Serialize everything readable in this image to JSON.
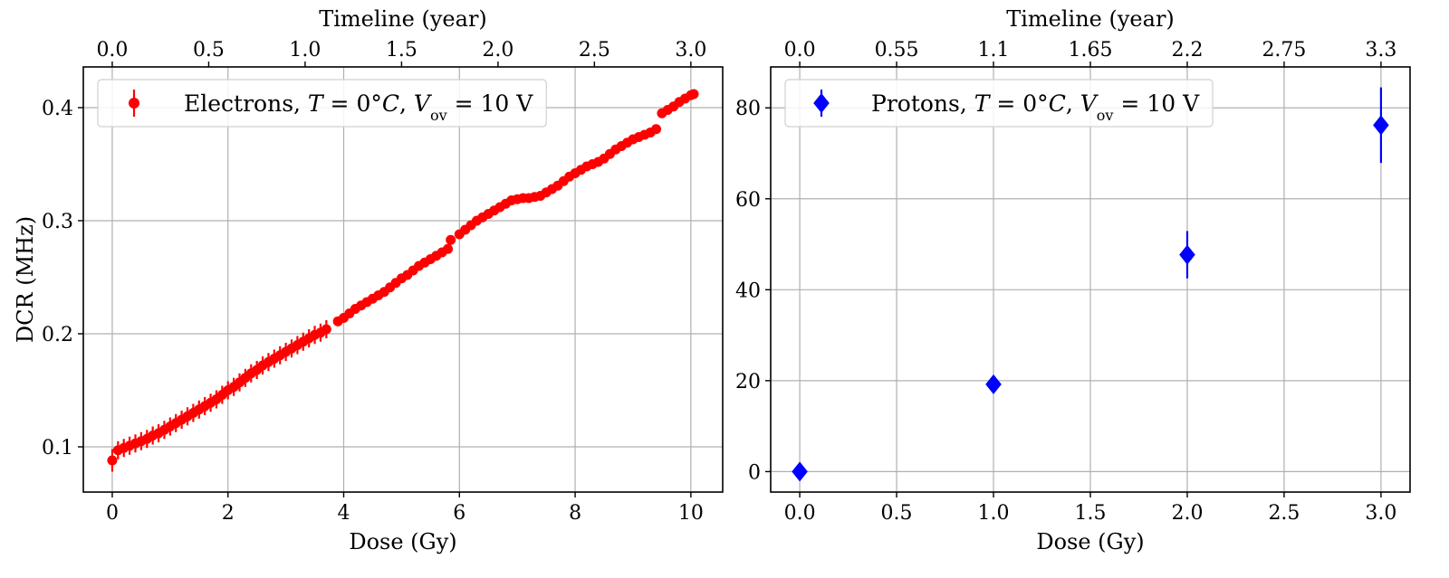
{
  "chart_data": [
    {
      "type": "scatter",
      "panel": "left",
      "marker": "circle",
      "color": "#ff0000",
      "xlabel": "Dose (Gy)",
      "ylabel": "DCR (MHz)",
      "top_xlabel": "Timeline (year)",
      "xlim": [
        -0.5,
        10.55
      ],
      "ylim": [
        0.06,
        0.436
      ],
      "x_ticks": [
        0,
        2,
        4,
        6,
        8,
        10
      ],
      "x_tick_labels": [
        "0",
        "2",
        "4",
        "6",
        "8",
        "10"
      ],
      "y_ticks": [
        0.1,
        0.2,
        0.3,
        0.4
      ],
      "y_tick_labels": [
        "0.1",
        "0.2",
        "0.3",
        "0.4"
      ],
      "top_x_ticks_dose": [
        0,
        1.667,
        3.333,
        5.0,
        6.667,
        8.333,
        10.0
      ],
      "top_x_tick_labels": [
        "0.0",
        "0.5",
        "1.0",
        "1.5",
        "2.0",
        "2.5",
        "3.0"
      ],
      "grid": true,
      "legend_position": "top-left",
      "legend_parts": [
        "Electrons, ",
        "T",
        " = 0°",
        "C",
        ", ",
        "V",
        "ov",
        " = 10 V"
      ],
      "series": [
        {
          "name": "Electrons, T = 0°C, Vov = 10 V",
          "points": [
            [
              0.0,
              0.088,
              0.01
            ],
            [
              0.1,
              0.097,
              0.008
            ],
            [
              0.2,
              0.099,
              0.008
            ],
            [
              0.3,
              0.101,
              0.008
            ],
            [
              0.4,
              0.103,
              0.008
            ],
            [
              0.5,
              0.105,
              0.008
            ],
            [
              0.6,
              0.107,
              0.008
            ],
            [
              0.7,
              0.11,
              0.008
            ],
            [
              0.8,
              0.112,
              0.008
            ],
            [
              0.9,
              0.115,
              0.008
            ],
            [
              1.0,
              0.118,
              0.008
            ],
            [
              1.1,
              0.121,
              0.008
            ],
            [
              1.2,
              0.124,
              0.008
            ],
            [
              1.3,
              0.127,
              0.008
            ],
            [
              1.4,
              0.13,
              0.008
            ],
            [
              1.5,
              0.133,
              0.008
            ],
            [
              1.6,
              0.136,
              0.008
            ],
            [
              1.7,
              0.139,
              0.008
            ],
            [
              1.8,
              0.142,
              0.008
            ],
            [
              1.9,
              0.146,
              0.008
            ],
            [
              2.0,
              0.15,
              0.008
            ],
            [
              2.1,
              0.153,
              0.008
            ],
            [
              2.2,
              0.157,
              0.008
            ],
            [
              2.3,
              0.161,
              0.008
            ],
            [
              2.4,
              0.165,
              0.008
            ],
            [
              2.5,
              0.168,
              0.008
            ],
            [
              2.6,
              0.172,
              0.008
            ],
            [
              2.7,
              0.175,
              0.008
            ],
            [
              2.8,
              0.178,
              0.008
            ],
            [
              2.9,
              0.181,
              0.008
            ],
            [
              3.0,
              0.184,
              0.008
            ],
            [
              3.1,
              0.187,
              0.008
            ],
            [
              3.2,
              0.19,
              0.008
            ],
            [
              3.3,
              0.193,
              0.008
            ],
            [
              3.4,
              0.196,
              0.008
            ],
            [
              3.5,
              0.199,
              0.008
            ],
            [
              3.6,
              0.201,
              0.008
            ],
            [
              3.7,
              0.204,
              0.008
            ],
            [
              3.9,
              0.211,
              0.002
            ],
            [
              4.0,
              0.214,
              0.002
            ],
            [
              4.1,
              0.218,
              0.002
            ],
            [
              4.2,
              0.222,
              0.002
            ],
            [
              4.3,
              0.225,
              0.002
            ],
            [
              4.4,
              0.228,
              0.002
            ],
            [
              4.5,
              0.231,
              0.002
            ],
            [
              4.6,
              0.234,
              0.002
            ],
            [
              4.7,
              0.237,
              0.002
            ],
            [
              4.8,
              0.241,
              0.002
            ],
            [
              4.9,
              0.245,
              0.002
            ],
            [
              5.0,
              0.249,
              0.002
            ],
            [
              5.1,
              0.252,
              0.002
            ],
            [
              5.2,
              0.256,
              0.002
            ],
            [
              5.3,
              0.26,
              0.002
            ],
            [
              5.4,
              0.263,
              0.002
            ],
            [
              5.5,
              0.266,
              0.002
            ],
            [
              5.6,
              0.269,
              0.002
            ],
            [
              5.7,
              0.272,
              0.002
            ],
            [
              5.8,
              0.275,
              0.002
            ],
            [
              5.85,
              0.283,
              0.002
            ],
            [
              6.0,
              0.288,
              0.002
            ],
            [
              6.1,
              0.292,
              0.002
            ],
            [
              6.2,
              0.296,
              0.002
            ],
            [
              6.3,
              0.3,
              0.002
            ],
            [
              6.4,
              0.303,
              0.002
            ],
            [
              6.5,
              0.306,
              0.002
            ],
            [
              6.6,
              0.309,
              0.002
            ],
            [
              6.7,
              0.312,
              0.002
            ],
            [
              6.8,
              0.315,
              0.002
            ],
            [
              6.9,
              0.318,
              0.002
            ],
            [
              7.0,
              0.319,
              0.002
            ],
            [
              7.1,
              0.32,
              0.002
            ],
            [
              7.2,
              0.32,
              0.002
            ],
            [
              7.3,
              0.321,
              0.002
            ],
            [
              7.4,
              0.322,
              0.002
            ],
            [
              7.5,
              0.325,
              0.002
            ],
            [
              7.6,
              0.328,
              0.002
            ],
            [
              7.7,
              0.331,
              0.002
            ],
            [
              7.8,
              0.335,
              0.002
            ],
            [
              7.9,
              0.339,
              0.002
            ],
            [
              8.0,
              0.342,
              0.002
            ],
            [
              8.1,
              0.345,
              0.002
            ],
            [
              8.2,
              0.348,
              0.002
            ],
            [
              8.3,
              0.35,
              0.002
            ],
            [
              8.4,
              0.352,
              0.002
            ],
            [
              8.5,
              0.355,
              0.002
            ],
            [
              8.6,
              0.359,
              0.002
            ],
            [
              8.7,
              0.363,
              0.002
            ],
            [
              8.8,
              0.366,
              0.002
            ],
            [
              8.9,
              0.369,
              0.002
            ],
            [
              9.0,
              0.372,
              0.002
            ],
            [
              9.1,
              0.374,
              0.004
            ],
            [
              9.2,
              0.376,
              0.004
            ],
            [
              9.3,
              0.378,
              0.004
            ],
            [
              9.4,
              0.381,
              0.004
            ],
            [
              9.5,
              0.395,
              0.004
            ],
            [
              9.6,
              0.398,
              0.004
            ],
            [
              9.7,
              0.401,
              0.004
            ],
            [
              9.8,
              0.405,
              0.004
            ],
            [
              9.9,
              0.408,
              0.004
            ],
            [
              10.0,
              0.411,
              0.002
            ],
            [
              10.05,
              0.412,
              0.002
            ]
          ]
        }
      ]
    },
    {
      "type": "scatter",
      "panel": "right",
      "marker": "diamond",
      "color": "#0000ff",
      "xlabel": "Dose (Gy)",
      "ylabel": "",
      "top_xlabel": "Timeline (year)",
      "xlim": [
        -0.15,
        3.15
      ],
      "ylim": [
        -4.5,
        89
      ],
      "x_ticks": [
        0.0,
        0.5,
        1.0,
        1.5,
        2.0,
        2.5,
        3.0
      ],
      "x_tick_labels": [
        "0.0",
        "0.5",
        "1.0",
        "1.5",
        "2.0",
        "2.5",
        "3.0"
      ],
      "y_ticks": [
        0,
        20,
        40,
        60,
        80
      ],
      "y_tick_labels": [
        "0",
        "20",
        "40",
        "60",
        "80"
      ],
      "top_x_ticks_dose": [
        0.0,
        0.5,
        1.0,
        1.5,
        2.0,
        2.5,
        3.0
      ],
      "top_x_tick_labels": [
        "0.0",
        "0.55",
        "1.1",
        "1.65",
        "2.2",
        "2.75",
        "3.3"
      ],
      "grid": true,
      "legend_position": "top-left",
      "legend_parts": [
        "Protons, ",
        "T",
        " = 0°",
        "C",
        ", ",
        "V",
        "ov",
        " = 10 V"
      ],
      "series": [
        {
          "name": "Protons, T = 0°C, Vov = 10 V",
          "points": [
            [
              0.0,
              0.0,
              0.0
            ],
            [
              1.0,
              19.2,
              0.0
            ],
            [
              2.0,
              47.7,
              5.2
            ],
            [
              3.0,
              76.2,
              8.3
            ]
          ]
        }
      ]
    }
  ]
}
